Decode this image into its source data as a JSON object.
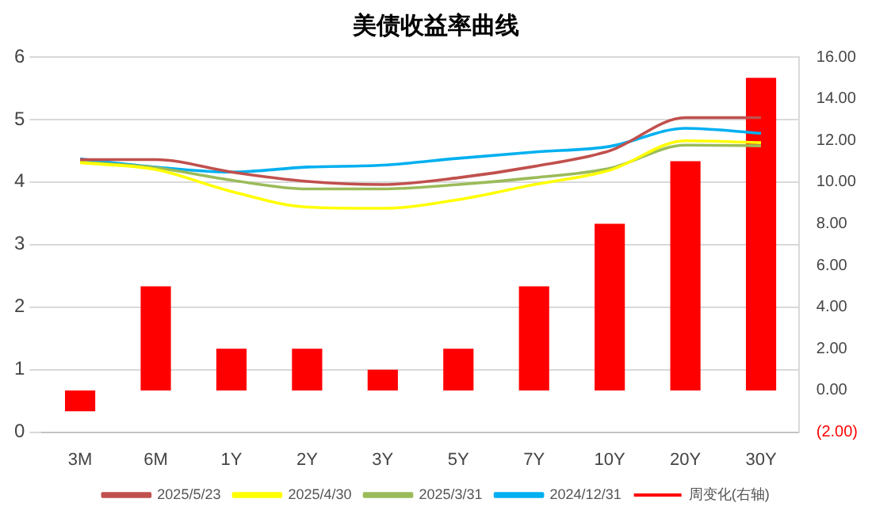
{
  "chart_data": {
    "type": "line",
    "title": "美债收益率曲线",
    "categories": [
      "3M",
      "6M",
      "1Y",
      "2Y",
      "3Y",
      "5Y",
      "7Y",
      "10Y",
      "20Y",
      "30Y"
    ],
    "series": [
      {
        "name": "周变化(右轴)",
        "type": "bar",
        "axis": "y2",
        "color": "#ff0000",
        "values": [
          -1,
          5,
          2,
          2,
          1,
          2,
          5,
          8,
          11,
          15
        ]
      },
      {
        "name": "2025/5/23",
        "color": "#c0504d",
        "values": [
          4.36,
          4.36,
          4.16,
          4.01,
          3.96,
          4.07,
          4.25,
          4.5,
          5.03,
          5.03
        ]
      },
      {
        "name": "2025/4/30",
        "color": "#ffff00",
        "values": [
          4.31,
          4.2,
          3.85,
          3.6,
          3.58,
          3.72,
          3.96,
          4.19,
          4.66,
          4.63
        ]
      },
      {
        "name": "2025/3/31",
        "color": "#9bbb59",
        "values": [
          4.32,
          4.23,
          4.03,
          3.89,
          3.89,
          3.96,
          4.07,
          4.22,
          4.59,
          4.58
        ]
      },
      {
        "name": "2024/12/31",
        "color": "#00b0f0",
        "values": [
          4.37,
          4.24,
          4.16,
          4.24,
          4.27,
          4.38,
          4.48,
          4.57,
          4.86,
          4.78
        ]
      }
    ],
    "ylim": [
      0,
      6
    ],
    "yticks": [
      0,
      1,
      2,
      3,
      4,
      5,
      6
    ],
    "y2lim": [
      -2,
      16
    ],
    "y2ticks": [
      {
        "value": -2,
        "label": "(2.00)"
      },
      {
        "value": 0,
        "label": "0.00"
      },
      {
        "value": 2,
        "label": "2.00"
      },
      {
        "value": 4,
        "label": "4.00"
      },
      {
        "value": 6,
        "label": "6.00"
      },
      {
        "value": 8,
        "label": "8.00"
      },
      {
        "value": 10,
        "label": "10.00"
      },
      {
        "value": 12,
        "label": "12.00"
      },
      {
        "value": 14,
        "label": "14.00"
      },
      {
        "value": 16,
        "label": "16.00"
      }
    ],
    "grid": "y",
    "legend": "bottom",
    "marker": "none",
    "line_style": "solid"
  }
}
